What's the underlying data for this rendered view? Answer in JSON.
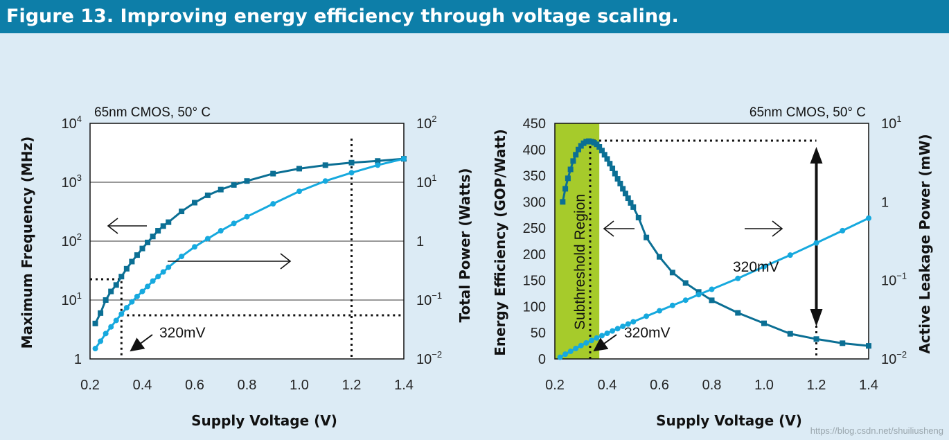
{
  "figure_title": "Figure 13. Improving energy efficiency through voltage scaling.",
  "watermark": "https://blog.csdn.net/shuiliusheng",
  "colors": {
    "title_bg": "#0d7ea8",
    "series_dark": "#0b6f94",
    "series_light": "#16a9de",
    "highlight": "#a6cb2b",
    "bg": "#dcebf5"
  },
  "chart_data": [
    {
      "type": "line",
      "title": "65nm CMOS, 50° C",
      "xlabel": "Supply Voltage (V)",
      "ylabel": "Maximum Frequency (MHz)",
      "y2label": "Total Power (Watts)",
      "xlim": [
        0.2,
        1.4
      ],
      "xticks": [
        "0.2",
        "0.4",
        "0.6",
        "0.8",
        "1.0",
        "1.2",
        "1.4"
      ],
      "ylim_log10": [
        0,
        4
      ],
      "yticks": [
        {
          "base": "1",
          "exp": ""
        },
        {
          "base": "10",
          "exp": "1"
        },
        {
          "base": "10",
          "exp": "2"
        },
        {
          "base": "10",
          "exp": "3"
        },
        {
          "base": "10",
          "exp": "4"
        }
      ],
      "y2lim_log10": [
        -2,
        2
      ],
      "y2ticks": [
        {
          "base": "10",
          "exp": "−2"
        },
        {
          "base": "10",
          "exp": "−1"
        },
        {
          "base": "1",
          "exp": ""
        },
        {
          "base": "10",
          "exp": "1"
        },
        {
          "base": "10",
          "exp": "2"
        }
      ],
      "annotation": "320mV",
      "series": [
        {
          "name": "Maximum Frequency",
          "axis": "left",
          "marker": "square",
          "x": [
            0.22,
            0.24,
            0.26,
            0.28,
            0.3,
            0.32,
            0.34,
            0.36,
            0.38,
            0.4,
            0.42,
            0.44,
            0.46,
            0.48,
            0.5,
            0.55,
            0.6,
            0.65,
            0.7,
            0.75,
            0.8,
            0.9,
            1.0,
            1.1,
            1.2,
            1.3,
            1.4
          ],
          "y": [
            4,
            6,
            10,
            14,
            18,
            25,
            34,
            45,
            58,
            75,
            95,
            120,
            150,
            180,
            210,
            320,
            450,
            600,
            750,
            900,
            1050,
            1400,
            1700,
            1950,
            2150,
            2300,
            2500
          ]
        },
        {
          "name": "Total Power",
          "axis": "right",
          "marker": "circle",
          "x": [
            0.22,
            0.24,
            0.26,
            0.28,
            0.3,
            0.32,
            0.34,
            0.36,
            0.38,
            0.4,
            0.42,
            0.44,
            0.46,
            0.48,
            0.5,
            0.55,
            0.6,
            0.65,
            0.7,
            0.75,
            0.8,
            0.9,
            1.0,
            1.1,
            1.2,
            1.3,
            1.4
          ],
          "y": [
            0.015,
            0.02,
            0.027,
            0.035,
            0.045,
            0.058,
            0.074,
            0.093,
            0.115,
            0.14,
            0.17,
            0.21,
            0.25,
            0.3,
            0.36,
            0.55,
            0.8,
            1.1,
            1.5,
            2.0,
            2.6,
            4.3,
            7.0,
            10.5,
            14.5,
            19.5,
            25
          ]
        }
      ]
    },
    {
      "type": "line",
      "title": "65nm CMOS, 50° C",
      "xlabel": "Supply Voltage (V)",
      "ylabel": "Energy Efficiency (GOP/Watt)",
      "y2label": "Active Leakage Power (mW)",
      "xlim": [
        0.2,
        1.4
      ],
      "xticks": [
        "0.2",
        "0.4",
        "0.6",
        "0.8",
        "1.0",
        "1.2",
        "1.4"
      ],
      "ylim": [
        0,
        450
      ],
      "yticks": [
        "0",
        "50",
        "100",
        "150",
        "200",
        "250",
        "300",
        "350",
        "400",
        "450"
      ],
      "y2lim_log10": [
        -2,
        1
      ],
      "y2ticks": [
        {
          "base": "10",
          "exp": "−2"
        },
        {
          "base": "10",
          "exp": "−1"
        },
        {
          "base": "1",
          "exp": ""
        },
        {
          "base": "10",
          "exp": "1"
        }
      ],
      "region_label": "Subthreshold Region",
      "region_x": [
        0.2,
        0.37
      ],
      "annotation_peak": "320mV",
      "annotation_bottom": "320mV",
      "series": [
        {
          "name": "Energy Efficiency",
          "axis": "left",
          "marker": "square",
          "x": [
            0.23,
            0.24,
            0.25,
            0.26,
            0.27,
            0.28,
            0.29,
            0.3,
            0.31,
            0.32,
            0.33,
            0.34,
            0.35,
            0.36,
            0.37,
            0.38,
            0.39,
            0.4,
            0.41,
            0.42,
            0.43,
            0.44,
            0.45,
            0.46,
            0.47,
            0.48,
            0.49,
            0.5,
            0.52,
            0.55,
            0.6,
            0.65,
            0.7,
            0.75,
            0.8,
            0.9,
            1.0,
            1.1,
            1.2,
            1.3,
            1.4
          ],
          "y": [
            300,
            325,
            345,
            362,
            378,
            390,
            400,
            407,
            412,
            415,
            416,
            415,
            413,
            410,
            405,
            398,
            390,
            382,
            373,
            364,
            354,
            344,
            335,
            325,
            316,
            307,
            298,
            290,
            270,
            232,
            195,
            165,
            145,
            128,
            112,
            88,
            68,
            48,
            38,
            30,
            25
          ]
        },
        {
          "name": "Active Leakage Power",
          "axis": "right",
          "marker": "circle",
          "x": [
            0.22,
            0.24,
            0.26,
            0.28,
            0.3,
            0.32,
            0.34,
            0.36,
            0.38,
            0.4,
            0.42,
            0.44,
            0.46,
            0.48,
            0.5,
            0.55,
            0.6,
            0.65,
            0.7,
            0.75,
            0.8,
            0.9,
            1.0,
            1.1,
            1.2,
            1.3,
            1.4
          ],
          "y": [
            0.0105,
            0.0115,
            0.0125,
            0.0136,
            0.0148,
            0.016,
            0.0172,
            0.0185,
            0.0198,
            0.0212,
            0.0227,
            0.0243,
            0.026,
            0.0278,
            0.0297,
            0.035,
            0.041,
            0.048,
            0.056,
            0.066,
            0.077,
            0.106,
            0.15,
            0.21,
            0.3,
            0.43,
            0.62
          ]
        }
      ]
    }
  ]
}
